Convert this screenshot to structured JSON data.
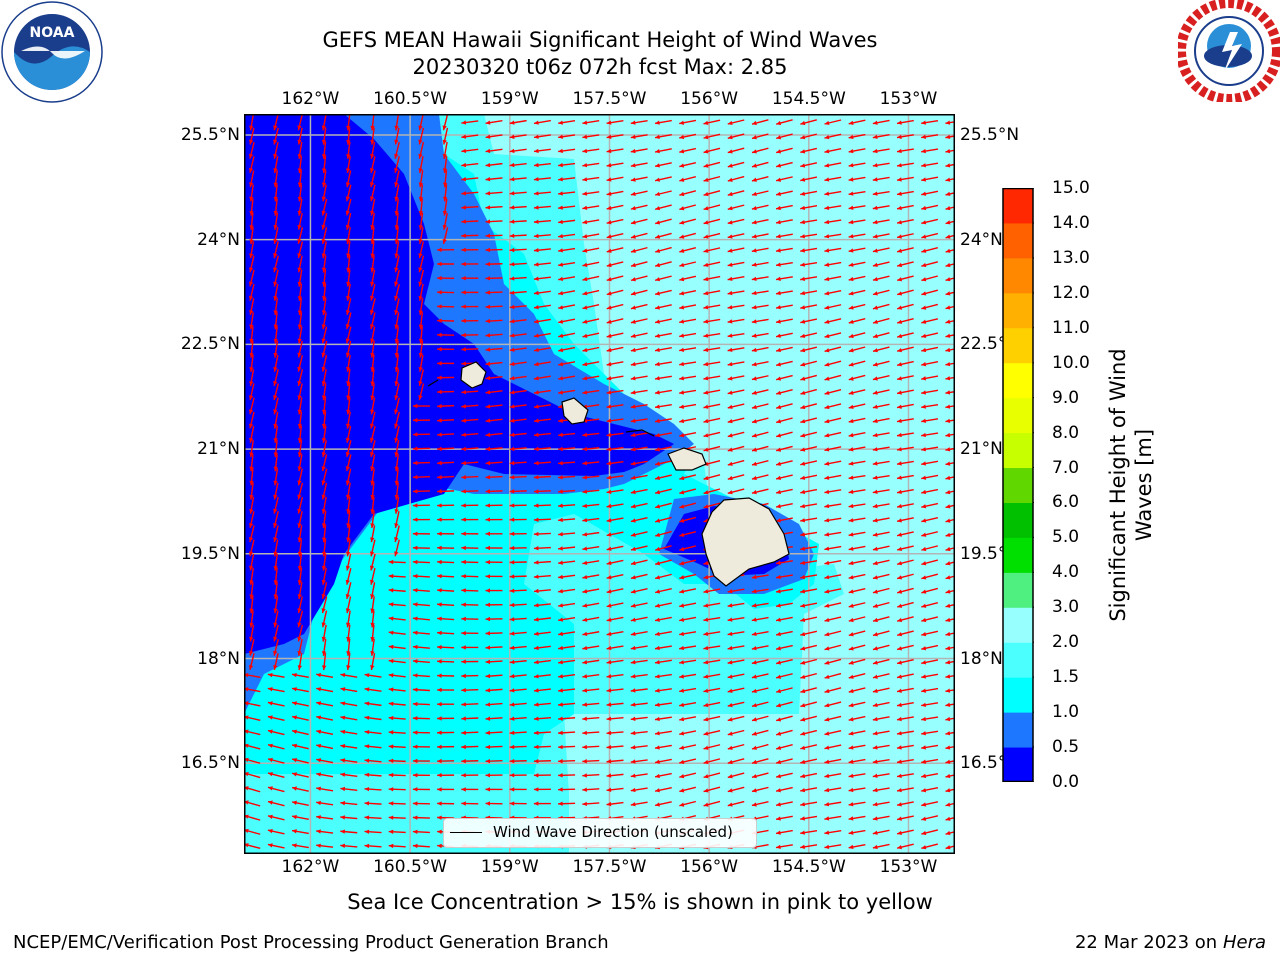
{
  "header": {
    "title_line1": "GEFS MEAN Hawaii Significant Height of Wind Waves",
    "title_line2": "20230320 t06z 072h fcst   Max: 2.85"
  },
  "logos": {
    "left": {
      "name": "noaa-logo",
      "text": "NOAA",
      "ring_text": "NATIONAL OCEANIC AND ATMOSPHERIC ADMINISTRATION · U.S. DEPARTMENT OF COMMERCE"
    },
    "right": {
      "name": "nws-logo",
      "ring_text": "NATIONAL WEATHER SERVICE"
    }
  },
  "map": {
    "lon_ticks": [
      "162°W",
      "160.5°W",
      "159°W",
      "157.5°W",
      "156°W",
      "154.5°W",
      "153°W"
    ],
    "lon_values": [
      -162,
      -160.5,
      -159,
      -157.5,
      -156,
      -154.5,
      -153
    ],
    "lat_ticks": [
      "25.5°N",
      "24°N",
      "22.5°N",
      "21°N",
      "19.5°N",
      "18°N",
      "16.5°N"
    ],
    "lat_values": [
      25.5,
      24,
      22.5,
      21,
      19.5,
      18,
      16.5
    ],
    "lon_range": [
      -163,
      -152.3
    ],
    "lat_range": [
      15.2,
      25.8
    ],
    "gridlines": true,
    "arrow_color": "#ff0000",
    "land_color": "#eeebdc",
    "legend_label": "Wind Wave Direction (unscaled)",
    "legend_placement": "bottom-center"
  },
  "colorbar": {
    "label_line1": "Significant Height of Wind",
    "label_line2": "Waves [m]",
    "levels": [
      "0.0",
      "0.5",
      "1.0",
      "1.5",
      "2.0",
      "3.0",
      "4.0",
      "5.0",
      "6.0",
      "7.0",
      "8.0",
      "9.0",
      "10.0",
      "11.0",
      "12.0",
      "13.0",
      "14.0",
      "15.0"
    ],
    "colors": [
      "#0000ff",
      "#1e78ff",
      "#00ffff",
      "#4cffff",
      "#98ffff",
      "#50f080",
      "#00e000",
      "#00c000",
      "#60d800",
      "#c8ff00",
      "#e8ff00",
      "#ffff00",
      "#ffd000",
      "#ffb000",
      "#ff8800",
      "#ff6000",
      "#ff2800"
    ]
  },
  "caption": "Sea Ice Concentration > 15% is shown in pink to yellow",
  "footer": {
    "left": "NCEP/EMC/Verification Post Processing Product Generation Branch",
    "right_date": "22 Mar 2023 on",
    "right_host": "Hera"
  }
}
